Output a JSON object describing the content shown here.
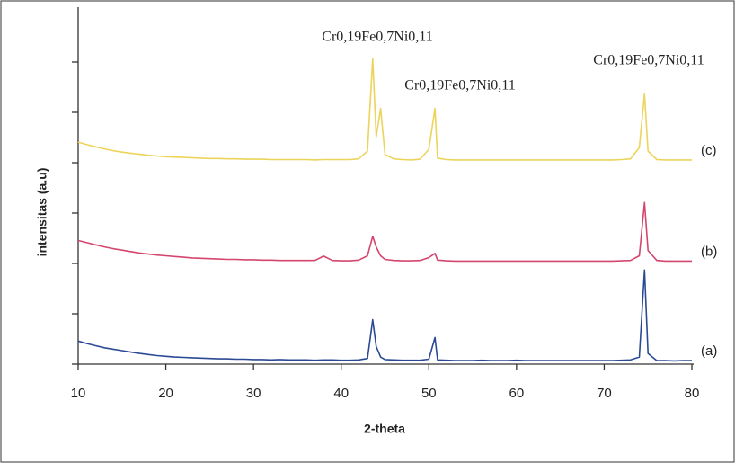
{
  "chart_data": {
    "type": "line",
    "x_label": "2-theta",
    "y_label": "intensitas (a.u)",
    "annotations": [
      "Cr0,19Fe0,7Ni0,11",
      "Cr0,19Fe0,7Ni0,11",
      "Cr0,19Fe0,7Ni0,11"
    ],
    "xlim": [
      10,
      80
    ],
    "xticks": [
      10,
      20,
      30,
      40,
      50,
      60,
      70,
      80
    ],
    "ylim": [
      0,
      100
    ],
    "x": [
      10,
      11,
      12,
      13,
      14,
      15,
      16,
      17,
      18,
      19,
      20,
      21,
      22,
      23,
      24,
      25,
      26,
      27,
      28,
      29,
      30,
      31,
      32,
      33,
      34,
      35,
      36,
      37,
      38,
      39,
      40,
      41,
      42,
      43,
      43.6,
      44,
      44.5,
      45,
      46,
      47,
      48,
      49,
      50,
      50.7,
      51,
      52,
      53,
      54,
      55,
      56,
      57,
      58,
      59,
      60,
      61,
      62,
      63,
      64,
      65,
      66,
      67,
      68,
      69,
      70,
      71,
      72,
      73,
      74,
      74.6,
      75,
      76,
      77,
      78,
      79,
      80
    ],
    "series": [
      {
        "name": "(a)",
        "color": "#2b4a94",
        "values": [
          6.5,
          5.8,
          5.2,
          4.6,
          4.2,
          3.8,
          3.4,
          3.0,
          2.7,
          2.4,
          2.2,
          2.0,
          1.9,
          1.8,
          1.7,
          1.6,
          1.5,
          1.5,
          1.4,
          1.4,
          1.3,
          1.3,
          1.2,
          1.3,
          1.2,
          1.2,
          1.2,
          1.1,
          1.2,
          1.2,
          1.1,
          1.1,
          1.2,
          1.6,
          12.5,
          5.0,
          2.0,
          1.3,
          1.2,
          1.1,
          1.1,
          1.1,
          1.4,
          7.5,
          1.2,
          1.1,
          1.0,
          1.0,
          1.0,
          1.1,
          1.0,
          1.0,
          1.0,
          1.1,
          1.0,
          1.0,
          1.0,
          1.0,
          1.0,
          1.0,
          1.0,
          1.0,
          1.0,
          1.0,
          1.0,
          1.1,
          1.2,
          2.0,
          26.5,
          3.0,
          1.0,
          1.0,
          0.9,
          1.0,
          1.0
        ]
      },
      {
        "name": "(b)",
        "color": "#d4466e",
        "values": [
          34.8,
          34.2,
          33.6,
          33.0,
          32.5,
          32.1,
          31.7,
          31.3,
          31.0,
          30.7,
          30.5,
          30.3,
          30.1,
          29.9,
          29.8,
          29.7,
          29.6,
          29.5,
          29.5,
          29.4,
          29.4,
          29.3,
          29.3,
          29.2,
          29.2,
          29.2,
          29.2,
          29.2,
          30.4,
          29.2,
          29.1,
          29.1,
          29.3,
          30.5,
          36.0,
          33.0,
          30.5,
          29.5,
          29.2,
          29.1,
          29.1,
          29.2,
          30.0,
          31.2,
          29.3,
          29.1,
          29.0,
          29.0,
          29.0,
          29.0,
          29.0,
          29.0,
          29.0,
          29.0,
          29.0,
          29.0,
          29.0,
          29.0,
          29.0,
          29.0,
          29.0,
          29.0,
          29.0,
          29.0,
          29.0,
          29.1,
          29.2,
          30.5,
          45.5,
          32.0,
          29.2,
          29.0,
          29.0,
          29.0,
          29.0
        ]
      },
      {
        "name": "(c)",
        "color": "#ecd45a",
        "values": [
          62.5,
          61.8,
          61.2,
          60.6,
          60.1,
          59.7,
          59.4,
          59.1,
          58.8,
          58.6,
          58.4,
          58.3,
          58.2,
          58.1,
          58.0,
          57.9,
          57.9,
          57.8,
          57.8,
          57.7,
          57.7,
          57.7,
          57.6,
          57.6,
          57.6,
          57.6,
          57.6,
          57.5,
          57.6,
          57.6,
          57.6,
          57.6,
          57.8,
          60.0,
          86.0,
          64.0,
          72.0,
          59.0,
          57.8,
          57.6,
          57.5,
          57.7,
          60.5,
          72.0,
          58.0,
          57.6,
          57.5,
          57.5,
          57.5,
          57.5,
          57.5,
          57.5,
          57.5,
          57.5,
          57.5,
          57.5,
          57.5,
          57.5,
          57.5,
          57.5,
          57.5,
          57.5,
          57.5,
          57.5,
          57.5,
          57.6,
          57.8,
          61.0,
          76.0,
          60.0,
          57.6,
          57.5,
          57.5,
          57.5,
          57.5
        ]
      }
    ]
  }
}
